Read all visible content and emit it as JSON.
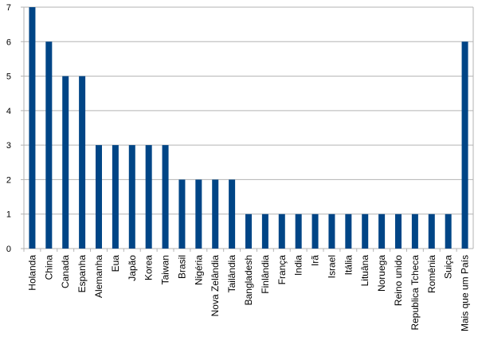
{
  "chart_data": {
    "type": "bar",
    "title": "",
    "xlabel": "",
    "ylabel": "",
    "ylim": [
      0,
      7
    ],
    "yticks": [
      0,
      1,
      2,
      3,
      4,
      5,
      6,
      7
    ],
    "grid": true,
    "legend": "none",
    "bar_color": "#004586",
    "grid_color": "#b3b3b3",
    "categories": [
      "Holanda",
      "China",
      "Canada",
      "Espanha",
      "Alemanha",
      "Eua",
      "Japão",
      "Korea",
      "Taiwan",
      "Brasil",
      "Nigéria",
      "Nova Zelândia",
      "Tailândia",
      "Bangladesh",
      "Finlândia",
      "França",
      "India",
      "Irã",
      "Israel",
      "Itália",
      "Lituâna",
      "Noruega",
      "Reino unido",
      "Republica Tcheca",
      "Romênia",
      "Suiça",
      "Mais que um País"
    ],
    "values": [
      7,
      6,
      5,
      5,
      3,
      3,
      3,
      3,
      3,
      2,
      2,
      2,
      2,
      1,
      1,
      1,
      1,
      1,
      1,
      1,
      1,
      1,
      1,
      1,
      1,
      1,
      6
    ]
  }
}
